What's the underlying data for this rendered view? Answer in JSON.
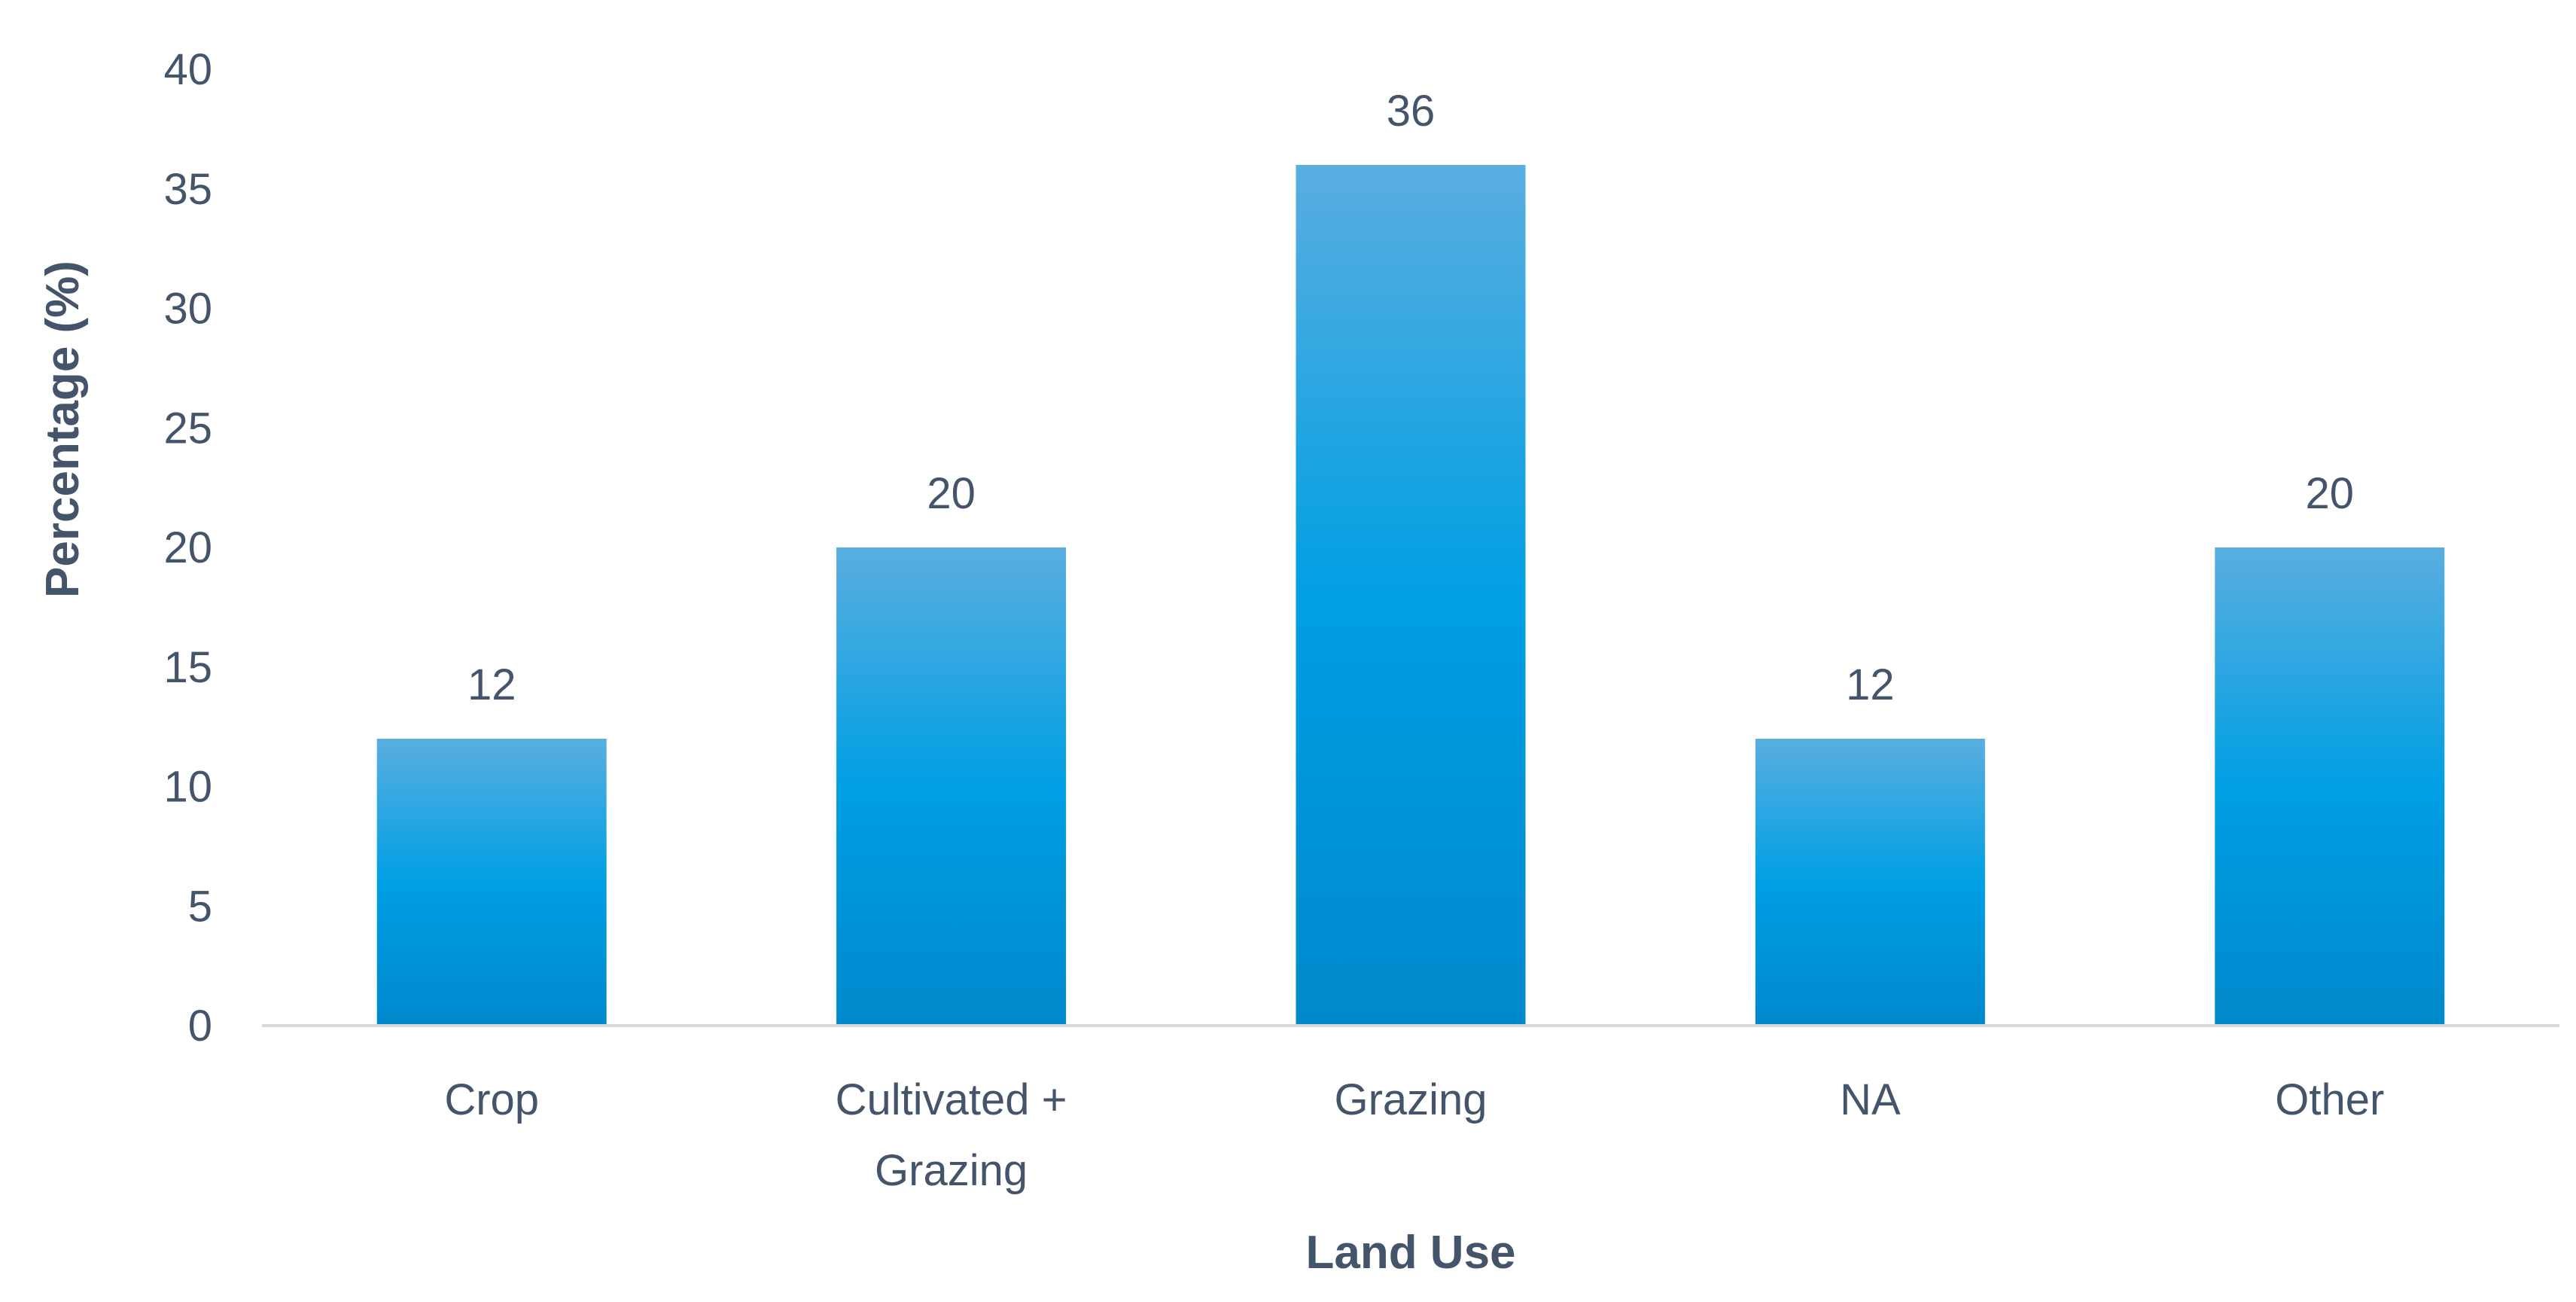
{
  "chart_data": {
    "type": "bar",
    "categories": [
      "Crop",
      "Cultivated + Grazing",
      "Grazing",
      "NA",
      "Other"
    ],
    "category_lines": [
      [
        "Crop"
      ],
      [
        "Cultivated +",
        "Grazing"
      ],
      [
        "Grazing"
      ],
      [
        "NA"
      ],
      [
        "Other"
      ]
    ],
    "values": [
      12,
      20,
      36,
      12,
      20
    ],
    "data_labels": [
      "12",
      "20",
      "36",
      "12",
      "20"
    ],
    "title": "",
    "xlabel": "Land Use",
    "ylabel": "Percentage (%)",
    "ylim": [
      0,
      40
    ],
    "yticks": [
      0,
      5,
      10,
      15,
      20,
      25,
      30,
      35,
      40
    ],
    "grid": false,
    "legend": "none",
    "colors": {
      "bar_top": "#5aaee0",
      "bar_mid": "#009fe3",
      "bar_bottom": "#0088cc",
      "text": "#44546a",
      "axis": "#d9d9d9"
    }
  }
}
